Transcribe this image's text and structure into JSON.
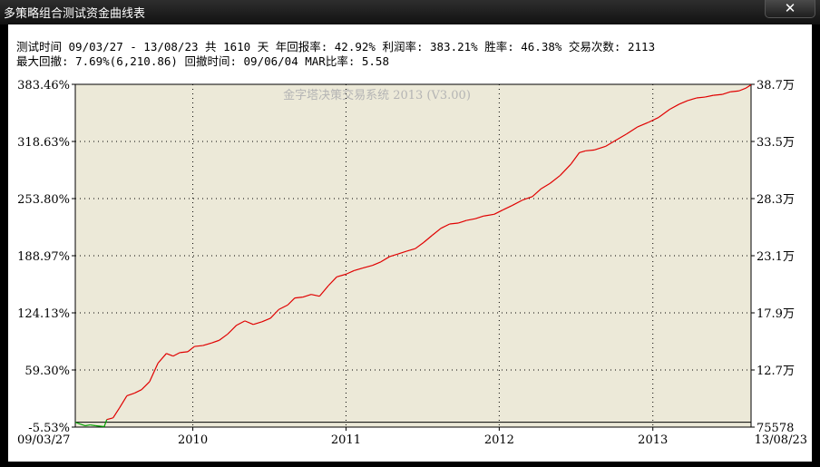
{
  "window": {
    "title": "多策略组合测试资金曲线表",
    "close_label": "✕"
  },
  "stats": {
    "line1": "测试时间 09/03/27 - 13/08/23 共 1610 天 年回报率: 42.92% 利润率: 383.21% 胜率: 46.38% 交易次数: 2113",
    "line2": "最大回撤: 7.69%(6,210.86) 回撤时间: 09/06/04 MAR比率: 5.58"
  },
  "colors": {
    "plot_bg": "#ECE9D8",
    "up_line": "#E00000",
    "down_line": "#00A000",
    "grid": "#000000",
    "watermark": "#B4B4B4"
  },
  "chart_data": {
    "type": "line",
    "title": "金字塔决策交易系统 2013 (V3.00)",
    "x_start_label": "09/03/27",
    "x_end_label": "13/08/23",
    "xlim": [
      "2009-03-27",
      "2013-08-23"
    ],
    "x_ticks": [
      {
        "label": "2010",
        "date": "2010-01-01"
      },
      {
        "label": "2011",
        "date": "2011-01-01"
      },
      {
        "label": "2012",
        "date": "2012-01-01"
      },
      {
        "label": "2013",
        "date": "2013-01-01"
      }
    ],
    "ylabel_left_unit": "%",
    "ylim": [
      -5.53,
      383.46
    ],
    "y_ticks_left": [
      "383.46%",
      "318.63%",
      "253.80%",
      "188.97%",
      "124.13%",
      "59.30%",
      "-5.53%"
    ],
    "y_ticks_right": [
      "38.7万",
      "33.5万",
      "28.3万",
      "23.1万",
      "17.9万",
      "12.7万",
      "75578"
    ],
    "grid": true,
    "baseline": 0,
    "series": [
      {
        "points": [
          [
            "2009-03-27",
            0
          ],
          [
            "2009-04-07",
            -2
          ],
          [
            "2009-04-20",
            -4
          ],
          [
            "2009-05-01",
            -3
          ],
          [
            "2009-05-15",
            -4
          ],
          [
            "2009-06-04",
            -5
          ],
          [
            "2009-06-10",
            3
          ],
          [
            "2009-06-25",
            5
          ],
          [
            "2009-07-10",
            16
          ],
          [
            "2009-07-28",
            30
          ],
          [
            "2009-08-15",
            33
          ],
          [
            "2009-09-01",
            37
          ],
          [
            "2009-09-20",
            46
          ],
          [
            "2009-10-10",
            67
          ],
          [
            "2009-10-30",
            78
          ],
          [
            "2009-11-15",
            75
          ],
          [
            "2009-12-01",
            79
          ],
          [
            "2009-12-20",
            80
          ],
          [
            "2010-01-05",
            86
          ],
          [
            "2010-01-25",
            87
          ],
          [
            "2010-02-15",
            90
          ],
          [
            "2010-03-05",
            93
          ],
          [
            "2010-03-25",
            100
          ],
          [
            "2010-04-15",
            110
          ],
          [
            "2010-05-05",
            115
          ],
          [
            "2010-05-25",
            111
          ],
          [
            "2010-06-15",
            114
          ],
          [
            "2010-07-05",
            118
          ],
          [
            "2010-07-25",
            128
          ],
          [
            "2010-08-15",
            133
          ],
          [
            "2010-09-01",
            141
          ],
          [
            "2010-09-20",
            142
          ],
          [
            "2010-10-10",
            145
          ],
          [
            "2010-10-30",
            143
          ],
          [
            "2010-11-20",
            155
          ],
          [
            "2010-12-10",
            165
          ],
          [
            "2011-01-01",
            168
          ],
          [
            "2011-01-20",
            172
          ],
          [
            "2011-02-10",
            175
          ],
          [
            "2011-03-05",
            178
          ],
          [
            "2011-03-25",
            182
          ],
          [
            "2011-04-15",
            188
          ],
          [
            "2011-05-05",
            191
          ],
          [
            "2011-05-25",
            194
          ],
          [
            "2011-06-15",
            197
          ],
          [
            "2011-07-05",
            204
          ],
          [
            "2011-07-25",
            212
          ],
          [
            "2011-08-15",
            220
          ],
          [
            "2011-09-05",
            225
          ],
          [
            "2011-09-25",
            226
          ],
          [
            "2011-10-15",
            229
          ],
          [
            "2011-11-05",
            231
          ],
          [
            "2011-11-25",
            234
          ],
          [
            "2011-12-20",
            236
          ],
          [
            "2012-01-10",
            241
          ],
          [
            "2012-02-01",
            246
          ],
          [
            "2012-02-25",
            252
          ],
          [
            "2012-03-20",
            256
          ],
          [
            "2012-04-10",
            265
          ],
          [
            "2012-05-01",
            271
          ],
          [
            "2012-05-25",
            280
          ],
          [
            "2012-06-20",
            293
          ],
          [
            "2012-07-10",
            306
          ],
          [
            "2012-07-25",
            308
          ],
          [
            "2012-08-15",
            309
          ],
          [
            "2012-09-10",
            313
          ],
          [
            "2012-10-05",
            320
          ],
          [
            "2012-10-30",
            327
          ],
          [
            "2012-11-25",
            335
          ],
          [
            "2012-12-20",
            340
          ],
          [
            "2013-01-15",
            346
          ],
          [
            "2013-02-10",
            355
          ],
          [
            "2013-03-05",
            361
          ],
          [
            "2013-03-25",
            365
          ],
          [
            "2013-04-15",
            368
          ],
          [
            "2013-05-05",
            369
          ],
          [
            "2013-05-25",
            371
          ],
          [
            "2013-06-15",
            372
          ],
          [
            "2013-07-05",
            375
          ],
          [
            "2013-07-25",
            376
          ],
          [
            "2013-08-10",
            379
          ],
          [
            "2013-08-23",
            383
          ]
        ]
      }
    ]
  }
}
